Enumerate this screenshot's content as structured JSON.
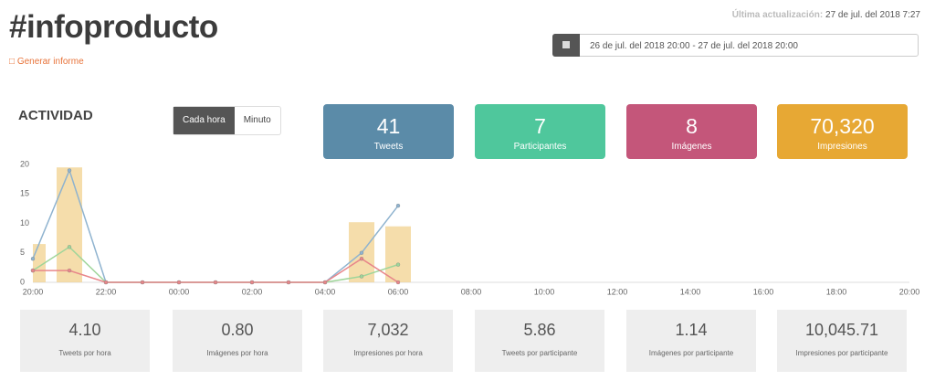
{
  "header": {
    "title": "#infoproducto",
    "report_link": "Generar informe",
    "last_update_label": "Última actualización:",
    "last_update_value": "27 de jul. del 2018 7:27",
    "date_range": "26 de jul. del 2018 20:00 - 27 de jul. del 2018 20:00"
  },
  "activity": {
    "title": "ACTIVIDAD",
    "toggle": [
      "Cada hora",
      "Minuto"
    ]
  },
  "cards": [
    {
      "value": "41",
      "label": "Tweets",
      "color": "#5b8ba8"
    },
    {
      "value": "7",
      "label": "Participantes",
      "color": "#4fc79c"
    },
    {
      "value": "8",
      "label": "Imágenes",
      "color": "#c4567a"
    },
    {
      "value": "70,320",
      "label": "Impresiones",
      "color": "#e7a834"
    }
  ],
  "chart_data": {
    "type": "line",
    "x": [
      0,
      1,
      2,
      3,
      4,
      5,
      6,
      7,
      8,
      9,
      10
    ],
    "series": [
      {
        "type": "bar",
        "color": "#f3d79c",
        "values": [
          6.5,
          19.5,
          0,
          0,
          0,
          0,
          0,
          0,
          0,
          10.2,
          9.5
        ]
      },
      {
        "color": "#8fb3cf",
        "values": [
          4,
          19,
          0,
          0,
          0,
          0,
          0,
          0,
          0,
          5,
          13
        ]
      },
      {
        "color": "#9fd59a",
        "values": [
          2,
          6,
          0,
          0,
          0,
          0,
          0,
          0,
          0,
          1,
          3
        ]
      },
      {
        "color": "#e8868a",
        "values": [
          2,
          2,
          0,
          0,
          0,
          0,
          0,
          0,
          0,
          4,
          0
        ]
      }
    ],
    "xlim": [
      0,
      24
    ],
    "xticks": [
      {
        "value": 0,
        "label": "20:00"
      },
      {
        "value": 2,
        "label": "22:00"
      },
      {
        "value": 4,
        "label": "00:00"
      },
      {
        "value": 6,
        "label": "02:00"
      },
      {
        "value": 8,
        "label": "04:00"
      },
      {
        "value": 10,
        "label": "06:00"
      },
      {
        "value": 12,
        "label": "08:00"
      },
      {
        "value": 14,
        "label": "10:00"
      },
      {
        "value": 16,
        "label": "12:00"
      },
      {
        "value": 18,
        "label": "14:00"
      },
      {
        "value": 20,
        "label": "16:00"
      },
      {
        "value": 22,
        "label": "18:00"
      },
      {
        "value": 24,
        "label": "20:00"
      }
    ],
    "ylim": [
      0,
      20
    ],
    "yticks": [
      0,
      5,
      10,
      15,
      20
    ]
  },
  "stats": [
    {
      "value": "4.10",
      "label": "Tweets por hora"
    },
    {
      "value": "0.80",
      "label": "Imágenes por hora"
    },
    {
      "value": "7,032",
      "label": "Impresiones por hora"
    },
    {
      "value": "5.86",
      "label": "Tweets por participante"
    },
    {
      "value": "1.14",
      "label": "Imágenes por participante"
    },
    {
      "value": "10,045.71",
      "label": "Impresiones por participante"
    }
  ]
}
